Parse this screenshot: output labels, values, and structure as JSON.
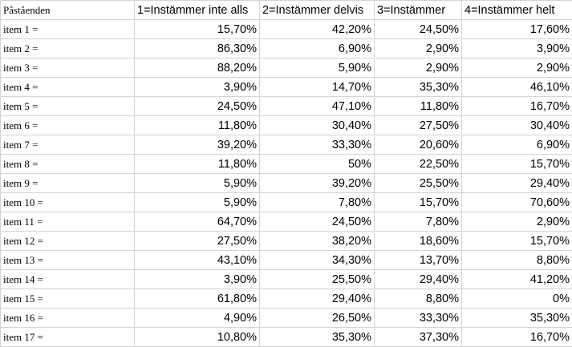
{
  "headers": [
    "Påståenden",
    "1=Instämmer inte alls",
    "2=Instämmer delvis",
    "3=Instämmer",
    "4=Instämmer helt"
  ],
  "rows": [
    {
      "label": "item 1 =",
      "values": [
        "15,70%",
        "42,20%",
        "24,50%",
        "17,60%"
      ]
    },
    {
      "label": "item 2 =",
      "values": [
        "86,30%",
        "6,90%",
        "2,90%",
        "3,90%"
      ]
    },
    {
      "label": "item 3 =",
      "values": [
        "88,20%",
        "5,90%",
        "2,90%",
        "2,90%"
      ]
    },
    {
      "label": "item 4 =",
      "values": [
        "3,90%",
        "14,70%",
        "35,30%",
        "46,10%"
      ]
    },
    {
      "label": "item 5 =",
      "values": [
        "24,50%",
        "47,10%",
        "11,80%",
        "16,70%"
      ]
    },
    {
      "label": "item 6 =",
      "values": [
        "11,80%",
        "30,40%",
        "27,50%",
        "30,40%"
      ]
    },
    {
      "label": "item 7 =",
      "values": [
        "39,20%",
        "33,30%",
        "20,60%",
        "6,90%"
      ]
    },
    {
      "label": "item 8 =",
      "values": [
        "11,80%",
        "50%",
        "22,50%",
        "15,70%"
      ]
    },
    {
      "label": "item 9 =",
      "values": [
        "5,90%",
        "39,20%",
        "25,50%",
        "29,40%"
      ]
    },
    {
      "label": "item 10 =",
      "values": [
        "5,90%",
        "7,80%",
        "15,70%",
        "70,60%"
      ]
    },
    {
      "label": "item 11 =",
      "values": [
        "64,70%",
        "24,50%",
        "7,80%",
        "2,90%"
      ]
    },
    {
      "label": "item 12 =",
      "values": [
        "27,50%",
        "38,20%",
        "18,60%",
        "15,70%"
      ]
    },
    {
      "label": "item 13 =",
      "values": [
        "43,10%",
        "34,30%",
        "13,70%",
        "8,80%"
      ]
    },
    {
      "label": "item 14 =",
      "values": [
        "3,90%",
        "25,50%",
        "29,40%",
        "41,20%"
      ]
    },
    {
      "label": "item 15 =",
      "values": [
        "61,80%",
        "29,40%",
        "8,80%",
        "0%"
      ]
    },
    {
      "label": "item 16 =",
      "values": [
        "4,90%",
        "26,50%",
        "33,30%",
        "35,30%"
      ]
    },
    {
      "label": "item 17 =",
      "values": [
        "10,80%",
        "35,30%",
        "37,30%",
        "16,70%"
      ]
    }
  ]
}
